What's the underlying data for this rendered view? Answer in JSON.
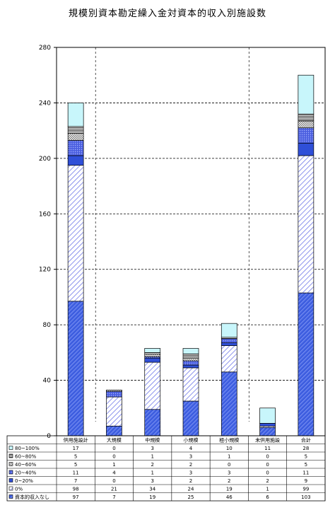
{
  "chart_data": {
    "type": "bar",
    "stacked": true,
    "title": "規模別資本勘定繰入金対資本的収入別施設数",
    "categories": [
      "供用施設計",
      "大規模",
      "中規模",
      "小規模",
      "極小規模",
      "未供用施設",
      "合計"
    ],
    "ylim": [
      0,
      280
    ],
    "yticks": [
      0,
      40,
      80,
      120,
      160,
      200,
      240,
      280
    ],
    "grid": true,
    "legend": "table-bottom",
    "series": [
      {
        "name": "資本的収入なし",
        "values": [
          97,
          7,
          19,
          25,
          46,
          6,
          103
        ],
        "color": "#3f5fe0",
        "pattern": "dense-diagonal"
      },
      {
        "name": "0%",
        "values": [
          98,
          21,
          34,
          24,
          19,
          1,
          99
        ],
        "color": "#6f78e8",
        "pattern": "light-diagonal"
      },
      {
        "name": "0~20%",
        "values": [
          7,
          0,
          3,
          2,
          2,
          2,
          9
        ],
        "color": "#2f4fd8",
        "pattern": "solid"
      },
      {
        "name": "20~40%",
        "values": [
          11,
          4,
          1,
          3,
          3,
          0,
          11
        ],
        "color": "#5566e0",
        "pattern": "dots"
      },
      {
        "name": "40~60%",
        "values": [
          5,
          1,
          2,
          2,
          0,
          0,
          5
        ],
        "color": "#8a8a8a",
        "pattern": "grid"
      },
      {
        "name": "60~80%",
        "values": [
          5,
          0,
          1,
          3,
          1,
          0,
          5
        ],
        "color": "#555555",
        "pattern": "hstripe"
      },
      {
        "name": "80~100%",
        "values": [
          17,
          0,
          3,
          4,
          10,
          11,
          28
        ],
        "color": "#c8f6fb",
        "pattern": "solid"
      }
    ]
  }
}
